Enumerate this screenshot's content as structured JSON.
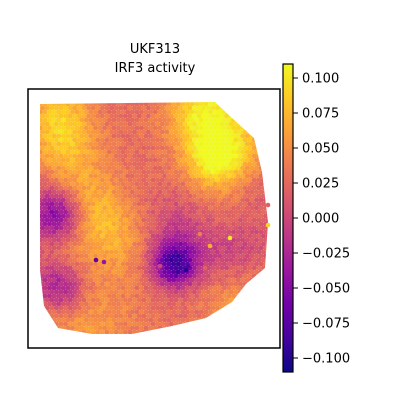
{
  "chart_data": {
    "type": "heatmap",
    "title_lines": [
      "UKF313",
      "IRF3 activity"
    ],
    "colormap": "plasma",
    "value_range": [
      -0.11,
      0.11
    ],
    "colorbar": {
      "ticks": [
        0.1,
        0.075,
        0.05,
        0.025,
        0.0,
        -0.025,
        -0.05,
        -0.075,
        -0.1
      ],
      "tick_labels": [
        "0.100",
        "0.075",
        "0.050",
        "0.025",
        "0.000",
        "−0.025",
        "−0.050",
        "−0.075",
        "−0.100"
      ]
    },
    "colorbar_stops": [
      "#0d0887",
      "#46039f",
      "#7201a8",
      "#9c179e",
      "#bd3786",
      "#d8576b",
      "#ed7953",
      "#fb9f3a",
      "#fdca26",
      "#f0f921"
    ],
    "grid": false,
    "legend": "colorbar-right"
  }
}
